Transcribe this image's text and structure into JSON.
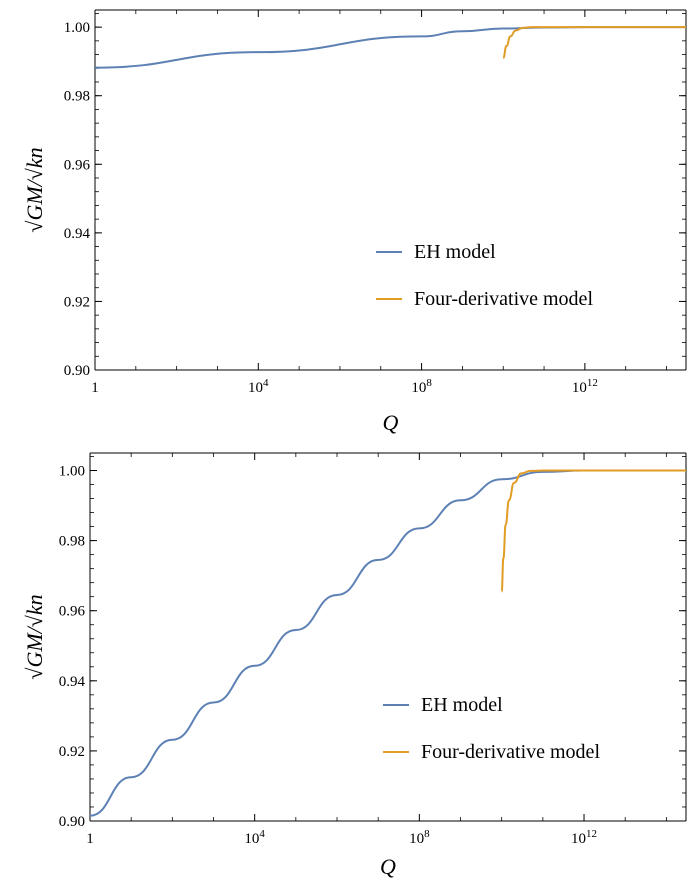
{
  "chart_data": [
    {
      "type": "line",
      "title": "",
      "xlabel": "Q",
      "ylabel": "√G M/√k n",
      "ylabel_parts": [
        "√",
        "G",
        "M/",
        "√",
        "kn"
      ],
      "x_scale": "log10",
      "xlim": [
        1,
        300000000000000.0
      ],
      "ylim": [
        0.9,
        1.005
      ],
      "x_ticks": [
        {
          "value": 1,
          "label": "1"
        },
        {
          "value": 10000,
          "label": "10",
          "sup": "4"
        },
        {
          "value": 100000000,
          "label": "10",
          "sup": "8"
        },
        {
          "value": 1000000000000,
          "label": "10",
          "sup": "12"
        }
      ],
      "y_ticks": [
        0.9,
        0.92,
        0.94,
        0.96,
        0.98,
        1.0
      ],
      "y_tick_labels": [
        "0.90",
        "0.92",
        "0.94",
        "0.96",
        "0.98",
        "1.00"
      ],
      "grid": false,
      "legend_position": "lower-right",
      "series": [
        {
          "name": "EH model",
          "color": "#5e81b5",
          "x": [
            1,
            10000,
            100000000,
            1000000000,
            10000000000,
            100000000000,
            1000000000000,
            300000000000000
          ],
          "y": [
            0.9882,
            0.9927,
            0.9973,
            0.9988,
            0.9996,
            0.9999,
            1.0,
            1.0
          ]
        },
        {
          "name": "Four-derivative model",
          "color": "#e19c24",
          "x": [
            10000000000,
            12000000000,
            15000000000,
            20000000000,
            30000000000,
            50000000000,
            100000000000,
            1000000000000,
            300000000000000
          ],
          "y": [
            0.991,
            0.9945,
            0.9973,
            0.999,
            0.9998,
            1.0,
            1.0,
            1.0,
            1.0
          ]
        }
      ]
    },
    {
      "type": "line",
      "title": "",
      "xlabel": "Q",
      "ylabel": "√G M/√k n",
      "ylabel_parts": [
        "√",
        "G",
        "M/",
        "√",
        "kn"
      ],
      "x_scale": "log10",
      "xlim": [
        1,
        300000000000000.0
      ],
      "ylim": [
        0.9,
        1.005
      ],
      "x_ticks": [
        {
          "value": 1,
          "label": "1"
        },
        {
          "value": 10000,
          "label": "10",
          "sup": "4"
        },
        {
          "value": 100000000,
          "label": "10",
          "sup": "8"
        },
        {
          "value": 1000000000000,
          "label": "10",
          "sup": "12"
        }
      ],
      "y_ticks": [
        0.9,
        0.92,
        0.94,
        0.96,
        0.98,
        1.0
      ],
      "y_tick_labels": [
        "0.90",
        "0.92",
        "0.94",
        "0.96",
        "0.98",
        "1.00"
      ],
      "grid": false,
      "legend_position": "lower-right",
      "series": [
        {
          "name": "EH model",
          "color": "#5e81b5",
          "x": [
            1,
            10,
            100,
            1000,
            10000,
            100000,
            1000000,
            10000000,
            100000000,
            1000000000,
            10000000000,
            100000000000,
            1000000000000,
            300000000000000
          ],
          "y": [
            0.9015,
            0.9125,
            0.9232,
            0.9338,
            0.9443,
            0.9545,
            0.9645,
            0.9745,
            0.9835,
            0.9915,
            0.9975,
            0.9996,
            1.0,
            1.0
          ]
        },
        {
          "name": "Four-derivative model",
          "color": "#e19c24",
          "x": [
            10000000000,
            11000000000,
            12500000000,
            15000000000,
            20000000000,
            30000000000,
            50000000000,
            100000000000,
            1000000000000,
            300000000000000
          ],
          "y": [
            0.9655,
            0.975,
            0.9845,
            0.9915,
            0.9965,
            0.9992,
            0.9999,
            1.0,
            1.0,
            1.0
          ]
        }
      ]
    }
  ]
}
